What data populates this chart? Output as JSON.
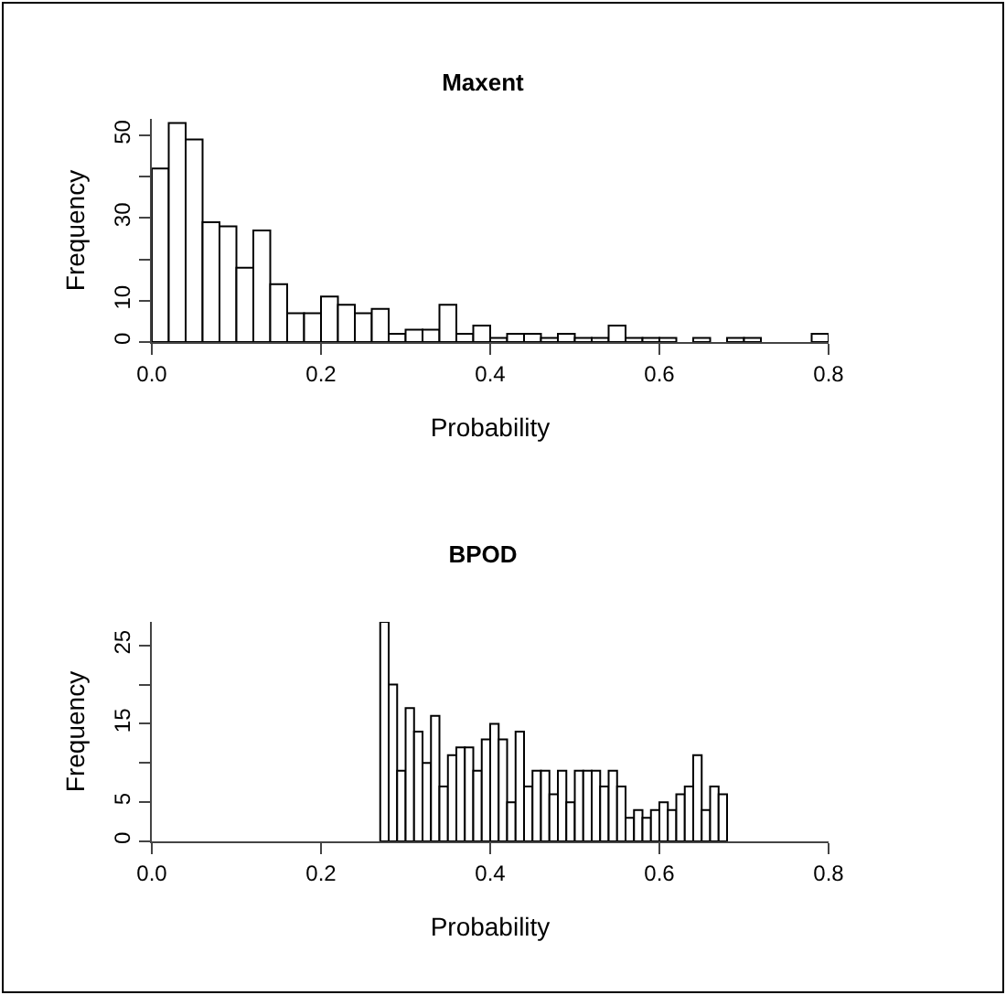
{
  "chart_data": [
    {
      "type": "histogram",
      "title": "Maxent",
      "xlabel": "Probability",
      "ylabel": "Frequency",
      "color": "#ffffff",
      "bins": [
        0,
        0.02,
        0.04,
        0.06,
        0.08,
        0.1,
        0.12,
        0.14,
        0.16,
        0.18,
        0.2,
        0.22,
        0.24,
        0.26,
        0.28,
        0.3,
        0.32,
        0.34,
        0.36,
        0.38,
        0.4,
        0.42,
        0.44,
        0.46,
        0.48,
        0.5,
        0.52,
        0.54,
        0.56,
        0.58,
        0.6,
        0.62,
        0.64,
        0.66,
        0.68,
        0.7,
        0.72,
        0.74,
        0.76,
        0.78,
        0.8
      ],
      "values": [
        42,
        53,
        49,
        29,
        28,
        18,
        27,
        14,
        7,
        7,
        11,
        9,
        7,
        8,
        2,
        3,
        3,
        9,
        2,
        4,
        1,
        2,
        2,
        1,
        2,
        1,
        1,
        4,
        1,
        1,
        1,
        0,
        1,
        0,
        1,
        1,
        0,
        0,
        0,
        2
      ],
      "xlim": [
        0,
        0.8
      ],
      "ylim": [
        0,
        54
      ],
      "xticks": [
        {
          "value": 0,
          "label": "0.0"
        },
        {
          "value": 0.2,
          "label": "0.2"
        },
        {
          "value": 0.4,
          "label": "0.4"
        },
        {
          "value": 0.6,
          "label": "0.6"
        },
        {
          "value": 0.8,
          "label": "0.8"
        }
      ],
      "yticks": [
        0,
        10,
        {
          "value": 20,
          "label": null
        },
        30,
        {
          "value": 40,
          "label": null
        },
        50
      ]
    },
    {
      "type": "histogram",
      "title": "BPOD",
      "xlabel": "Probability",
      "ylabel": "Frequency",
      "color": "#ffffff",
      "bins": [
        0.27,
        0.28,
        0.29,
        0.3,
        0.31,
        0.32,
        0.33,
        0.34,
        0.35,
        0.36,
        0.37,
        0.38,
        0.39,
        0.4,
        0.41,
        0.42,
        0.43,
        0.44,
        0.45,
        0.46,
        0.47,
        0.48,
        0.49,
        0.5,
        0.51,
        0.52,
        0.53,
        0.54,
        0.55,
        0.56,
        0.57,
        0.58,
        0.59,
        0.6,
        0.61,
        0.62,
        0.63,
        0.64,
        0.65,
        0.66,
        0.67,
        0.68
      ],
      "values": [
        28,
        20,
        9,
        17,
        14,
        10,
        16,
        7,
        11,
        12,
        12,
        9,
        13,
        15,
        13,
        5,
        14,
        7,
        9,
        9,
        6,
        9,
        5,
        9,
        9,
        9,
        7,
        9,
        7,
        3,
        4,
        3,
        4,
        5,
        4,
        6,
        7,
        11,
        4,
        7,
        6
      ],
      "xlim": [
        0,
        0.8
      ],
      "ylim": [
        0,
        28
      ],
      "xticks": [
        {
          "value": 0,
          "label": "0.0"
        },
        {
          "value": 0.2,
          "label": "0.2"
        },
        {
          "value": 0.4,
          "label": "0.4"
        },
        {
          "value": 0.6,
          "label": "0.6"
        },
        {
          "value": 0.8,
          "label": "0.8"
        }
      ],
      "yticks": [
        0,
        5,
        {
          "value": 10,
          "label": null
        },
        15,
        {
          "value": 20,
          "label": null
        },
        25
      ]
    }
  ]
}
